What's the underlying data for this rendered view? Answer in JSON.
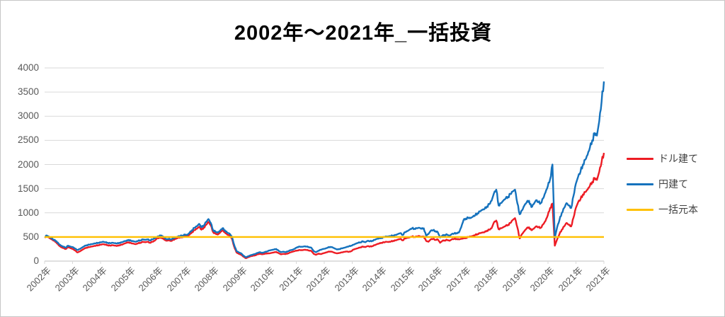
{
  "title": "2002年〜2021年_一括投資",
  "colors": {
    "usd_line": "#ED1C24",
    "jpy_line": "#1572BD",
    "principal_line": "#FFC000",
    "gridline": "#D9D9D9",
    "axis_line": "#BFBFBF",
    "axis_text": "#595959",
    "legend_text": "#404040",
    "canvas_border": "#C6C6C6"
  },
  "chart_data": {
    "type": "line",
    "title": "2002年〜2021年_一括投資",
    "xlabel": "",
    "ylabel": "",
    "ylim": [
      0,
      4000
    ],
    "y_ticks": [
      0,
      500,
      1000,
      1500,
      2000,
      2500,
      3000,
      3500,
      4000
    ],
    "x_range_years": [
      2002,
      2022
    ],
    "x_tick_labels": [
      "2002年",
      "2003年",
      "2004年",
      "2005年",
      "2006年",
      "2007年",
      "2008年",
      "2009年",
      "2010年",
      "2011年",
      "2012年",
      "2013年",
      "2014年",
      "2015年",
      "2016年",
      "2017年",
      "2018年",
      "2019年",
      "2020年",
      "2021年",
      "2021年"
    ],
    "sampling": "monthly",
    "grid": "horizontal",
    "legend_position": "right",
    "series": [
      {
        "name": "ドル建て",
        "color": "#ED1C24",
        "monthly_values": [
          500,
          515,
          480,
          450,
          420,
          390,
          330,
          290,
          270,
          250,
          290,
          270,
          250,
          220,
          180,
          200,
          230,
          260,
          280,
          290,
          300,
          310,
          320,
          330,
          340,
          350,
          340,
          330,
          320,
          330,
          320,
          315,
          330,
          340,
          360,
          380,
          390,
          370,
          360,
          350,
          370,
          380,
          400,
          390,
          400,
          380,
          400,
          420,
          470,
          480,
          490,
          450,
          420,
          430,
          420,
          440,
          460,
          480,
          490,
          500,
          520,
          510,
          550,
          600,
          640,
          670,
          710,
          650,
          690,
          750,
          810,
          740,
          600,
          570,
          550,
          590,
          640,
          600,
          550,
          530,
          470,
          300,
          180,
          150,
          130,
          90,
          60,
          80,
          100,
          110,
          120,
          140,
          150,
          140,
          150,
          160,
          160,
          170,
          180,
          190,
          165,
          140,
          150,
          145,
          160,
          180,
          195,
          210,
          220,
          230,
          225,
          235,
          230,
          220,
          210,
          150,
          130,
          155,
          145,
          160,
          175,
          190,
          200,
          190,
          170,
          160,
          170,
          180,
          190,
          200,
          190,
          205,
          240,
          255,
          270,
          285,
          300,
          290,
          310,
          300,
          310,
          330,
          350,
          365,
          380,
          390,
          400,
          395,
          405,
          420,
          430,
          445,
          460,
          430,
          470,
          480,
          490,
          510,
          500,
          510,
          520,
          500,
          510,
          420,
          400,
          450,
          460,
          440,
          450,
          380,
          420,
          430,
          440,
          420,
          450,
          460,
          460,
          450,
          460,
          470,
          480,
          500,
          510,
          520,
          540,
          560,
          580,
          590,
          600,
          630,
          650,
          680,
          800,
          840,
          660,
          680,
          700,
          730,
          750,
          790,
          850,
          890,
          700,
          470,
          560,
          620,
          680,
          700,
          640,
          670,
          720,
          700,
          690,
          760,
          830,
          950,
          1100,
          1190,
          320,
          450,
          560,
          650,
          720,
          790,
          750,
          720,
          900,
          1100,
          1220,
          1280,
          1380,
          1430,
          1480,
          1560,
          1640,
          1720,
          1680,
          1850,
          2050,
          2240
        ]
      },
      {
        "name": "円建て",
        "color": "#1572BD",
        "monthly_values": [
          505,
          530,
          500,
          470,
          440,
          415,
          360,
          320,
          300,
          280,
          320,
          300,
          290,
          260,
          230,
          250,
          280,
          310,
          330,
          340,
          350,
          360,
          370,
          380,
          390,
          400,
          390,
          380,
          370,
          380,
          370,
          365,
          380,
          390,
          410,
          420,
          440,
          420,
          410,
          400,
          420,
          430,
          450,
          440,
          450,
          430,
          450,
          470,
          500,
          520,
          530,
          490,
          450,
          460,
          450,
          470,
          490,
          510,
          520,
          530,
          550,
          540,
          590,
          640,
          690,
          720,
          770,
          700,
          740,
          810,
          870,
          790,
          640,
          610,
          590,
          630,
          680,
          640,
          590,
          570,
          510,
          340,
          210,
          180,
          160,
          110,
          80,
          100,
          120,
          135,
          150,
          170,
          185,
          170,
          185,
          200,
          220,
          230,
          240,
          250,
          215,
          185,
          195,
          185,
          205,
          225,
          235,
          260,
          290,
          300,
          295,
          305,
          300,
          290,
          275,
          205,
          185,
          215,
          235,
          250,
          260,
          280,
          295,
          285,
          260,
          240,
          250,
          265,
          275,
          290,
          305,
          320,
          340,
          360,
          380,
          390,
          410,
          390,
          420,
          410,
          420,
          440,
          460,
          470,
          480,
          500,
          510,
          510,
          520,
          530,
          540,
          560,
          580,
          540,
          600,
          620,
          650,
          680,
          670,
          680,
          690,
          670,
          680,
          530,
          560,
          630,
          640,
          620,
          600,
          490,
          530,
          540,
          550,
          520,
          560,
          570,
          580,
          590,
          700,
          850,
          880,
          900,
          890,
          920,
          950,
          990,
          1030,
          1060,
          1080,
          1130,
          1180,
          1250,
          1400,
          1480,
          1150,
          1200,
          1250,
          1300,
          1330,
          1390,
          1440,
          1480,
          1200,
          970,
          1050,
          1150,
          1220,
          1250,
          1120,
          1180,
          1260,
          1220,
          1200,
          1300,
          1420,
          1550,
          1700,
          2000,
          480,
          700,
          850,
          1000,
          1100,
          1200,
          1150,
          1100,
          1350,
          1600,
          1750,
          1850,
          2000,
          2100,
          2200,
          2350,
          2500,
          2650,
          2600,
          2900,
          3300,
          3720
        ]
      },
      {
        "name": "一括元本",
        "color": "#FFC000",
        "style": "constant",
        "value": 500
      }
    ]
  }
}
